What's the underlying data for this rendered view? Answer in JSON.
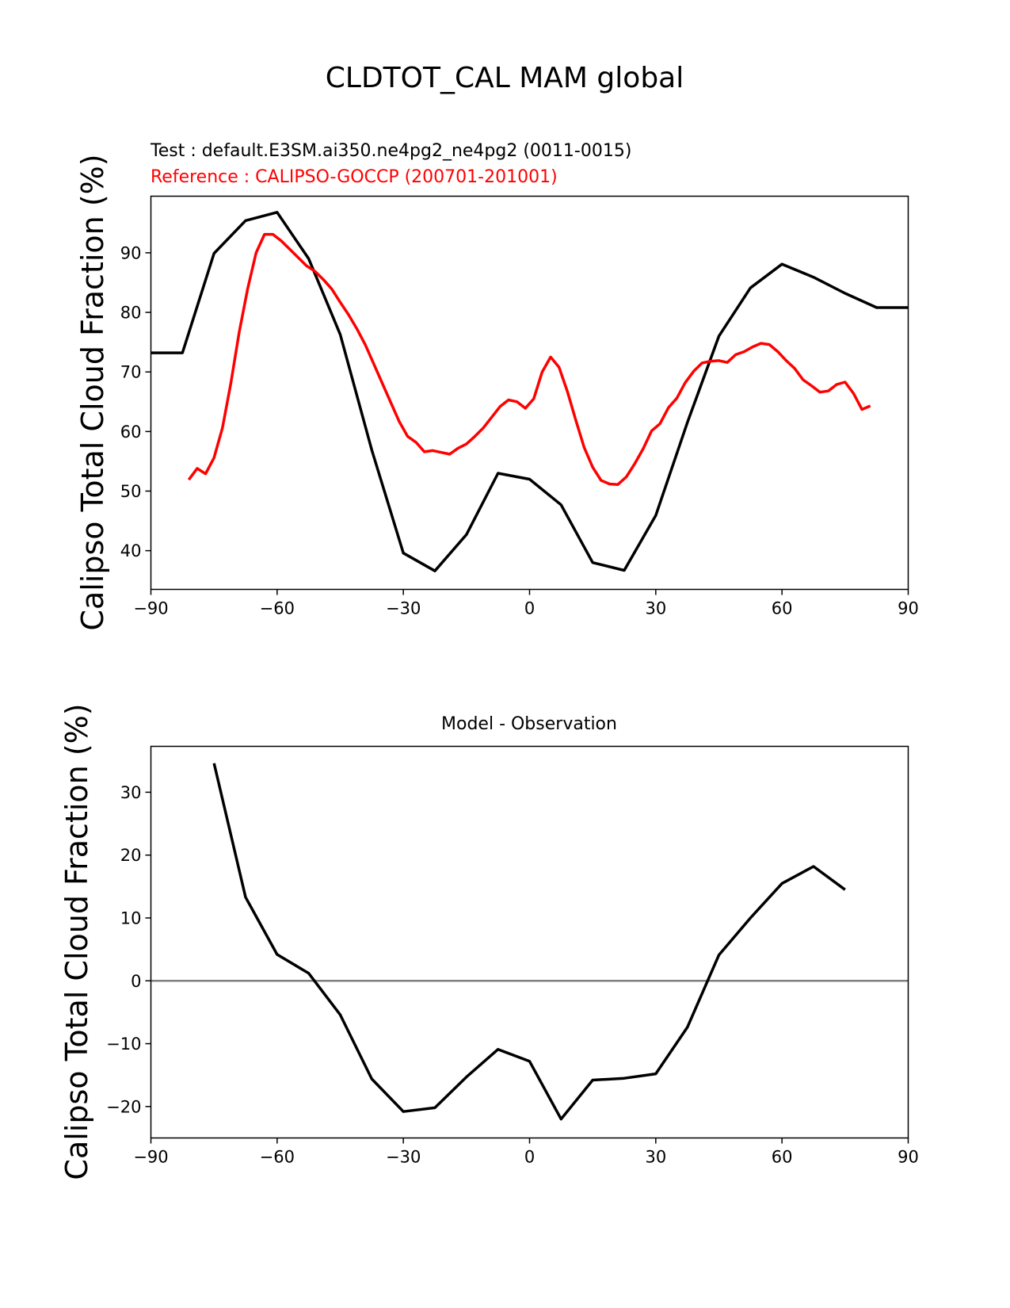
{
  "figure": {
    "title": "CLDTOT_CAL MAM global"
  },
  "chart_data": [
    {
      "type": "line",
      "test_label": "Test : default.E3SM.ai350.ne4pg2_ne4pg2 (0011-0015)",
      "reference_label": "Reference : CALIPSO-GOCCP (200701-201001)",
      "ylabel": "Calipso Total Cloud Fraction (%)",
      "xlim": [
        -90,
        90
      ],
      "ylim": [
        33.5,
        99.5
      ],
      "xticks": [
        -90,
        -60,
        -30,
        0,
        30,
        60,
        90
      ],
      "yticks": [
        40,
        50,
        60,
        70,
        80,
        90
      ],
      "series": [
        {
          "color": "#000000",
          "x": [
            -90,
            -82.5,
            -75,
            -67.5,
            -60,
            -52.5,
            -45,
            -37.5,
            -30,
            -22.5,
            -15,
            -7.5,
            0,
            7.5,
            15,
            22.5,
            30,
            37.5,
            45,
            52.5,
            60,
            67.5,
            75,
            82.5,
            90
          ],
          "y": [
            73.2,
            73.2,
            89.9,
            95.4,
            96.8,
            89.0,
            76.3,
            56.9,
            39.6,
            36.6,
            42.7,
            53.0,
            52.0,
            47.7,
            38.0,
            36.7,
            45.9,
            61.5,
            76.0,
            84.1,
            88.1,
            85.9,
            83.2,
            80.8,
            80.8
          ]
        },
        {
          "color": "#ff0000",
          "x": [
            -81,
            -79,
            -77,
            -75,
            -73,
            -71,
            -69,
            -67,
            -65,
            -63,
            -61,
            -59,
            -57,
            -55,
            -53,
            -51,
            -49,
            -47,
            -45,
            -43,
            -41,
            -39,
            -37,
            -35,
            -33,
            -31,
            -29,
            -27,
            -25,
            -23,
            -21,
            -19,
            -17,
            -15,
            -13,
            -11,
            -9,
            -7,
            -5,
            -3,
            -1,
            1,
            3,
            5,
            7,
            9,
            11,
            13,
            15,
            17,
            19,
            21,
            23,
            25,
            27,
            29,
            31,
            33,
            35,
            37,
            39,
            41,
            43,
            45,
            47,
            49,
            51,
            53,
            55,
            57,
            59,
            61,
            63,
            65,
            67,
            69,
            71,
            73,
            75,
            77,
            79,
            81
          ],
          "y": [
            51.9,
            53.8,
            52.9,
            55.6,
            60.6,
            68.1,
            76.7,
            84.0,
            90.0,
            93.1,
            93.1,
            92.0,
            90.6,
            89.2,
            87.8,
            86.9,
            85.5,
            83.9,
            81.7,
            79.6,
            77.2,
            74.5,
            71.3,
            68.1,
            64.9,
            61.7,
            59.2,
            58.2,
            56.6,
            56.8,
            56.5,
            56.2,
            57.2,
            57.9,
            59.2,
            60.6,
            62.4,
            64.2,
            65.3,
            65.0,
            63.9,
            65.5,
            70.0,
            72.5,
            70.8,
            66.7,
            61.9,
            57.3,
            54.0,
            51.8,
            51.2,
            51.1,
            52.4,
            54.6,
            57.1,
            60.1,
            61.3,
            64.0,
            65.6,
            68.2,
            70.1,
            71.5,
            71.8,
            71.9,
            71.6,
            72.9,
            73.4,
            74.2,
            74.8,
            74.6,
            73.4,
            71.9,
            70.6,
            68.7,
            67.7,
            66.6,
            66.8,
            67.9,
            68.3,
            66.4,
            63.7,
            64.3
          ]
        }
      ]
    },
    {
      "type": "line",
      "title": "Model - Observation",
      "ylabel": "Calipso Total Cloud Fraction (%)",
      "xlim": [
        -90,
        90
      ],
      "ylim": [
        -25,
        37.3
      ],
      "xticks": [
        -90,
        -60,
        -30,
        0,
        30,
        60,
        90
      ],
      "yticks": [
        -20,
        -10,
        0,
        10,
        20,
        30
      ],
      "zero_line_color": "#808080",
      "series": [
        {
          "color": "#000000",
          "x": [
            -75,
            -67.5,
            -60,
            -52.5,
            -45,
            -37.5,
            -30,
            -22.5,
            -15,
            -7.5,
            0,
            7.5,
            15,
            22.5,
            30,
            37.5,
            45,
            52.5,
            60,
            67.5,
            75
          ],
          "y": [
            34.6,
            13.3,
            4.2,
            1.2,
            -5.4,
            -15.6,
            -20.8,
            -20.2,
            -15.3,
            -10.9,
            -12.8,
            -22.0,
            -15.8,
            -15.5,
            -14.8,
            -7.4,
            4.1,
            10.0,
            15.5,
            18.2,
            14.5
          ]
        }
      ]
    }
  ]
}
